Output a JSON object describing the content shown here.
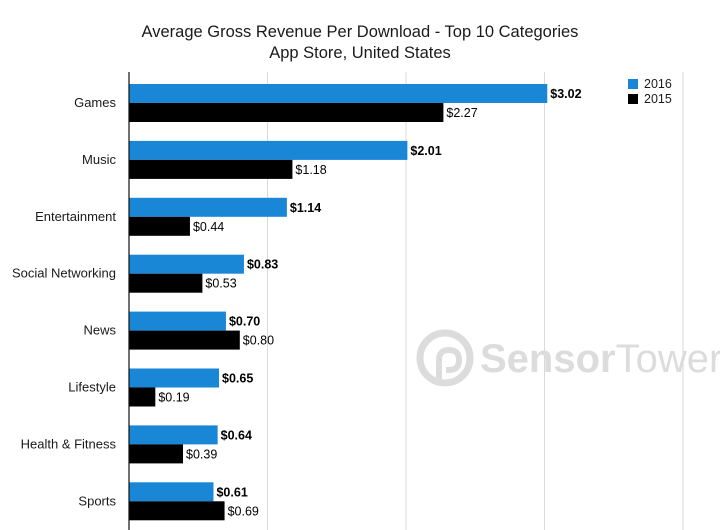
{
  "chart_data": {
    "type": "bar",
    "orientation": "horizontal",
    "title": "Average Gross Revenue Per Download - Top 10 Categories",
    "subtitle": "App Store, United States",
    "categories": [
      "Games",
      "Music",
      "Entertainment",
      "Social Networking",
      "News",
      "Lifestyle",
      "Health & Fitness",
      "Sports"
    ],
    "series": [
      {
        "name": "2016",
        "color": "#1a86d6",
        "values": [
          3.02,
          2.01,
          1.14,
          0.83,
          0.7,
          0.65,
          0.64,
          0.61
        ],
        "labels": [
          "$3.02",
          "$2.01",
          "$1.14",
          "$0.83",
          "$0.70",
          "$0.65",
          "$0.64",
          "$0.61"
        ]
      },
      {
        "name": "2015",
        "color": "#000000",
        "values": [
          2.27,
          1.18,
          0.44,
          0.53,
          0.8,
          0.19,
          0.39,
          0.69
        ],
        "labels": [
          "$2.27",
          "$1.18",
          "$0.44",
          "$0.53",
          "$0.80",
          "$0.19",
          "$0.39",
          "$0.69"
        ]
      }
    ],
    "xlim": [
      0,
      4
    ],
    "grid": true,
    "legend": "top-right",
    "watermark": "SensorTower"
  }
}
